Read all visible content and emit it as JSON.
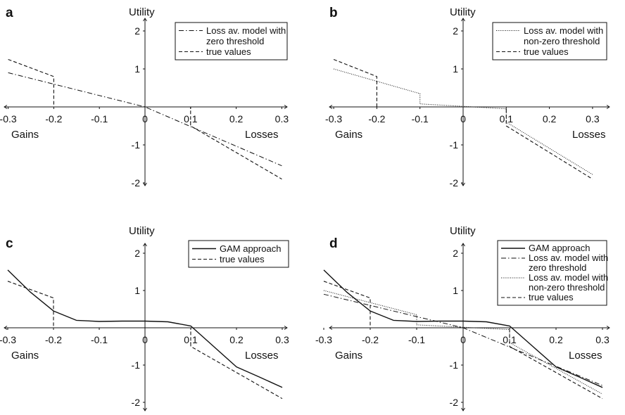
{
  "chart_data": [
    {
      "type": "line",
      "panel_label": "a",
      "ylabel": "Utility",
      "xlabel_left": "Gains",
      "xlabel_right": "Losses",
      "xlim": [
        -0.3,
        0.3
      ],
      "ylim": [
        -2,
        2
      ],
      "xticks": [
        "-0.3",
        "-0.2",
        "-0.1",
        "0",
        "0.1",
        "0.2",
        "0.3"
      ],
      "yticks": [
        "2",
        "1",
        "-1",
        "-2"
      ],
      "legend_position": "top-right",
      "series": [
        {
          "name": "Loss av. model with zero threshold",
          "name_lines": [
            "Loss av. model with",
            "zero threshold"
          ],
          "style": "dashdot",
          "x": [
            -0.3,
            0,
            0.3
          ],
          "y": [
            0.9,
            0,
            -1.55
          ]
        },
        {
          "name": "true values",
          "name_lines": [
            "true values"
          ],
          "style": "dashed",
          "x": [
            -0.3,
            -0.2,
            -0.2,
            0.1,
            0.1,
            0.3
          ],
          "y": [
            1.25,
            0.8,
            0,
            0,
            -0.5,
            -1.9
          ]
        }
      ]
    },
    {
      "type": "line",
      "panel_label": "b",
      "ylabel": "Utility",
      "xlabel_left": "Gains",
      "xlabel_right": "Losses",
      "xlim": [
        -0.3,
        0.3
      ],
      "ylim": [
        -2,
        2
      ],
      "xticks": [
        "-0.3",
        "-0.2",
        "-0.1",
        "0",
        "0.1",
        "0.2",
        "0.3"
      ],
      "yticks": [
        "2",
        "1",
        "-1",
        "-2"
      ],
      "legend_position": "top-right",
      "series": [
        {
          "name": "Loss av. model with non-zero threshold",
          "name_lines": [
            "Loss av. model with",
            "non-zero threshold"
          ],
          "style": "dotted",
          "x": [
            -0.3,
            -0.1,
            -0.1,
            0.1,
            0.1,
            0.3
          ],
          "y": [
            1.0,
            0.35,
            0.08,
            -0.05,
            -0.4,
            -1.78
          ]
        },
        {
          "name": "true values",
          "name_lines": [
            "true values"
          ],
          "style": "dashed",
          "x": [
            -0.3,
            -0.2,
            -0.2,
            0.1,
            0.1,
            0.3
          ],
          "y": [
            1.25,
            0.8,
            0,
            0,
            -0.5,
            -1.9
          ]
        }
      ]
    },
    {
      "type": "line",
      "panel_label": "c",
      "ylabel": "Utility",
      "xlabel_left": "Gains",
      "xlabel_right": "Losses",
      "xlim": [
        -0.3,
        0.3
      ],
      "ylim": [
        -2,
        2
      ],
      "xticks": [
        "-0.3",
        "-0.2",
        "-0.1",
        "0",
        "0.1",
        "0.2",
        "0.3"
      ],
      "yticks": [
        "2",
        "1",
        "-1",
        "-2"
      ],
      "legend_position": "top-right",
      "series": [
        {
          "name": "GAM approach",
          "name_lines": [
            "GAM approach"
          ],
          "style": "solid",
          "x": [
            -0.3,
            -0.25,
            -0.2,
            -0.15,
            -0.1,
            -0.05,
            0,
            0.05,
            0.1,
            0.15,
            0.2,
            0.25,
            0.3
          ],
          "y": [
            1.55,
            0.95,
            0.45,
            0.2,
            0.17,
            0.18,
            0.18,
            0.16,
            0.05,
            -0.5,
            -1.05,
            -1.32,
            -1.6
          ]
        },
        {
          "name": "true values",
          "name_lines": [
            "true values"
          ],
          "style": "dashed",
          "x": [
            -0.3,
            -0.2,
            -0.2,
            0.1,
            0.1,
            0.3
          ],
          "y": [
            1.25,
            0.8,
            0,
            0,
            -0.5,
            -1.9
          ]
        }
      ]
    },
    {
      "type": "line",
      "panel_label": "d",
      "ylabel": "Utility",
      "xlabel_left": "Gains",
      "xlabel_right": "Losses",
      "xlim": [
        -0.3,
        0.3
      ],
      "ylim": [
        -2,
        2
      ],
      "xticks": [
        "-0.3",
        "-0.2",
        "-0.1",
        "0",
        "0.1",
        "0.2",
        "0.3"
      ],
      "yticks": [
        "2",
        "1",
        "-1",
        "-2"
      ],
      "legend_position": "top-right",
      "series": [
        {
          "name": "GAM approach",
          "name_lines": [
            "GAM approach"
          ],
          "style": "solid",
          "x": [
            -0.3,
            -0.25,
            -0.2,
            -0.15,
            -0.1,
            -0.05,
            0,
            0.05,
            0.1,
            0.15,
            0.2,
            0.25,
            0.3
          ],
          "y": [
            1.55,
            0.95,
            0.45,
            0.2,
            0.17,
            0.18,
            0.18,
            0.16,
            0.05,
            -0.5,
            -1.05,
            -1.32,
            -1.6
          ]
        },
        {
          "name": "Loss av. model with zero threshold",
          "name_lines": [
            "Loss av. model with",
            "zero threshold"
          ],
          "style": "dashdot",
          "x": [
            -0.3,
            0,
            0.3
          ],
          "y": [
            0.9,
            0,
            -1.55
          ]
        },
        {
          "name": "Loss av. model with non-zero threshold",
          "name_lines": [
            "Loss av. model with",
            "non-zero threshold"
          ],
          "style": "dotted",
          "x": [
            -0.3,
            -0.1,
            -0.1,
            0.1,
            0.1,
            0.3
          ],
          "y": [
            1.0,
            0.35,
            0.08,
            -0.05,
            -0.4,
            -1.78
          ]
        },
        {
          "name": "true values",
          "name_lines": [
            "true values"
          ],
          "style": "dashed",
          "x": [
            -0.3,
            -0.2,
            -0.2,
            0.1,
            0.1,
            0.3
          ],
          "y": [
            1.25,
            0.8,
            0,
            0,
            -0.5,
            -1.9
          ]
        }
      ]
    }
  ]
}
